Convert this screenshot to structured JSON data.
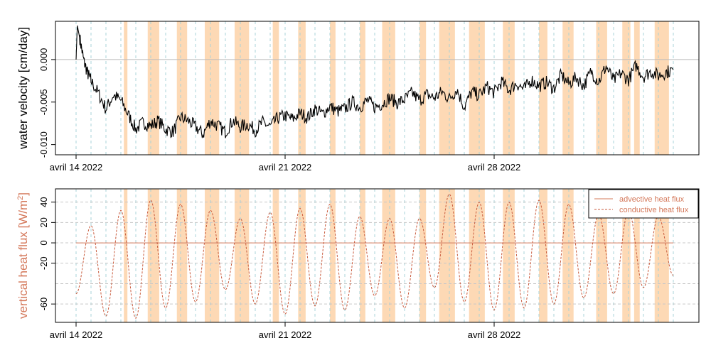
{
  "chart_data": [
    {
      "type": "line",
      "ylabel": "water velocity [cm/day]",
      "x_range": [
        "2022-04-14",
        "2022-05-04"
      ],
      "ylim": [
        -0.0112,
        0.0045
      ],
      "yticks": [
        {
          "value": 0.0,
          "label": "0.000"
        },
        {
          "value": -0.005,
          "label": "-0.005"
        },
        {
          "value": -0.01,
          "label": "-0.010"
        }
      ],
      "xticks": [
        {
          "date": "2022-04-14",
          "label": "avril 14 2022"
        },
        {
          "date": "2022-04-21",
          "label": "avril 21 2022"
        },
        {
          "date": "2022-04-28",
          "label": "avril 28 2022"
        }
      ],
      "reference_line": 0.0,
      "grid": "dashed vertical lines every 12 hours",
      "colors": {
        "line": "#000000",
        "shading": "#fdd9b5",
        "grid": "#a9d3d8"
      },
      "series": [
        {
          "x": [
            "2022-04-14 00:00",
            "2022-04-14 01:00",
            "2022-04-14 03:00",
            "2022-04-14 06:00",
            "2022-04-14 09:00",
            "2022-04-14 12:00",
            "2022-04-14 18:00",
            "2022-04-15 00:00",
            "2022-04-15 06:00",
            "2022-04-15 12:00",
            "2022-04-15 18:00",
            "2022-04-16 00:00",
            "2022-04-16 06:00",
            "2022-04-16 12:00",
            "2022-04-16 18:00",
            "2022-04-17 00:00",
            "2022-04-17 06:00",
            "2022-04-17 12:00",
            "2022-04-17 18:00",
            "2022-04-18 00:00",
            "2022-04-18 06:00",
            "2022-04-18 12:00",
            "2022-04-18 18:00",
            "2022-04-19 00:00",
            "2022-04-19 06:00",
            "2022-04-19 12:00",
            "2022-04-19 18:00",
            "2022-04-20 00:00",
            "2022-04-20 06:00",
            "2022-04-20 12:00",
            "2022-04-20 18:00",
            "2022-04-21 00:00",
            "2022-04-21 06:00",
            "2022-04-21 12:00",
            "2022-04-21 18:00",
            "2022-04-22 00:00",
            "2022-04-22 06:00",
            "2022-04-22 12:00",
            "2022-04-22 18:00",
            "2022-04-23 00:00",
            "2022-04-23 06:00",
            "2022-04-23 12:00",
            "2022-04-23 18:00",
            "2022-04-24 00:00",
            "2022-04-24 06:00",
            "2022-04-24 12:00",
            "2022-04-24 18:00",
            "2022-04-25 00:00",
            "2022-04-25 06:00",
            "2022-04-25 12:00",
            "2022-04-25 18:00",
            "2022-04-26 00:00",
            "2022-04-26 06:00",
            "2022-04-26 12:00",
            "2022-04-26 18:00",
            "2022-04-27 00:00",
            "2022-04-27 06:00",
            "2022-04-27 12:00",
            "2022-04-27 18:00",
            "2022-04-28 00:00",
            "2022-04-28 06:00",
            "2022-04-28 12:00",
            "2022-04-28 18:00",
            "2022-04-29 00:00",
            "2022-04-29 06:00",
            "2022-04-29 12:00",
            "2022-04-29 18:00",
            "2022-04-30 00:00",
            "2022-04-30 06:00",
            "2022-04-30 12:00",
            "2022-04-30 18:00",
            "2022-05-01 00:00",
            "2022-05-01 06:00",
            "2022-05-01 12:00",
            "2022-05-01 18:00",
            "2022-05-02 00:00",
            "2022-05-02 06:00",
            "2022-05-02 12:00",
            "2022-05-02 18:00",
            "2022-05-03 00:00",
            "2022-05-03 06:00",
            "2022-05-03 12:00",
            "2022-05-03 18:00",
            "2022-05-04 00:00"
          ],
          "y": [
            0.0,
            0.004,
            0.0025,
            0.0,
            -0.0015,
            -0.0025,
            -0.004,
            -0.0058,
            -0.0042,
            -0.0048,
            -0.0065,
            -0.0082,
            -0.0074,
            -0.0078,
            -0.0072,
            -0.0082,
            -0.0085,
            -0.0068,
            -0.0072,
            -0.0079,
            -0.0088,
            -0.0072,
            -0.0078,
            -0.0085,
            -0.0072,
            -0.0079,
            -0.0076,
            -0.0083,
            -0.0074,
            -0.0079,
            -0.0069,
            -0.0066,
            -0.007,
            -0.0063,
            -0.0068,
            -0.0058,
            -0.0064,
            -0.0055,
            -0.0061,
            -0.0058,
            -0.005,
            -0.0056,
            -0.0048,
            -0.0056,
            -0.0052,
            -0.0045,
            -0.0051,
            -0.0047,
            -0.0039,
            -0.0048,
            -0.0041,
            -0.0045,
            -0.0038,
            -0.0046,
            -0.0035,
            -0.0056,
            -0.0038,
            -0.0042,
            -0.0032,
            -0.0039,
            -0.0026,
            -0.0036,
            -0.0028,
            -0.0035,
            -0.0024,
            -0.0031,
            -0.0027,
            -0.0034,
            -0.0018,
            -0.0029,
            -0.0021,
            -0.0031,
            -0.0014,
            -0.0026,
            -0.0008,
            -0.0025,
            -0.0016,
            -0.0024,
            -0.0007,
            -0.002,
            -0.0014,
            -0.0019,
            -0.0015,
            -0.0012
          ]
        }
      ]
    },
    {
      "type": "line",
      "ylabel": "vertical heat flux [W/m²]",
      "x_range": [
        "2022-04-14",
        "2022-05-04"
      ],
      "ylim": [
        -78,
        53
      ],
      "yticks": [
        {
          "value": 40,
          "label": "40"
        },
        {
          "value": 20,
          "label": "20"
        },
        {
          "value": 0,
          "label": "0"
        },
        {
          "value": -20,
          "label": "-20"
        },
        {
          "value": -60,
          "label": "-60"
        }
      ],
      "xticks": [
        {
          "date": "2022-04-14",
          "label": "avril 14 2022"
        },
        {
          "date": "2022-04-21",
          "label": "avril 21 2022"
        },
        {
          "date": "2022-04-28",
          "label": "avril 28 2022"
        }
      ],
      "grid": "dashed horizontal lines at -60, -40, -20, 0, 20, 40 and dashed vertical lines every 12 hours",
      "legend_position": "top-right",
      "colors": {
        "advective": "#d4785a",
        "conductive": "#c85a3c",
        "ylabel": "#d4785a",
        "shading": "#fdd9b5"
      },
      "series": [
        {
          "name": "advective heat flux",
          "style": "solid",
          "x": [
            "2022-04-14 00:00",
            "2022-05-04 00:00"
          ],
          "y": [
            0,
            0
          ]
        },
        {
          "name": "conductive heat flux",
          "style": "dashed",
          "x": [
            "2022-04-14 00:00",
            "2022-04-14 12:00",
            "2022-04-15 00:00",
            "2022-04-15 12:00",
            "2022-04-16 00:00",
            "2022-04-16 12:00",
            "2022-04-17 00:00",
            "2022-04-17 12:00",
            "2022-04-18 00:00",
            "2022-04-18 12:00",
            "2022-04-19 00:00",
            "2022-04-19 12:00",
            "2022-04-20 00:00",
            "2022-04-20 12:00",
            "2022-04-21 00:00",
            "2022-04-21 12:00",
            "2022-04-22 00:00",
            "2022-04-22 12:00",
            "2022-04-23 00:00",
            "2022-04-23 12:00",
            "2022-04-24 00:00",
            "2022-04-24 12:00",
            "2022-04-25 00:00",
            "2022-04-25 12:00",
            "2022-04-26 00:00",
            "2022-04-26 12:00",
            "2022-04-27 00:00",
            "2022-04-27 12:00",
            "2022-04-28 00:00",
            "2022-04-28 12:00",
            "2022-04-29 00:00",
            "2022-04-29 12:00",
            "2022-04-30 00:00",
            "2022-04-30 12:00",
            "2022-05-01 00:00",
            "2022-05-01 12:00",
            "2022-05-02 00:00",
            "2022-05-02 12:00",
            "2022-05-03 00:00",
            "2022-05-03 12:00",
            "2022-05-04 00:00"
          ],
          "y": [
            -50,
            17,
            -72,
            32,
            -74,
            42,
            -64,
            38,
            -58,
            32,
            -46,
            24,
            -60,
            30,
            -70,
            34,
            -62,
            38,
            -66,
            26,
            -52,
            24,
            -64,
            24,
            -44,
            48,
            -58,
            40,
            -66,
            40,
            -64,
            42,
            -60,
            38,
            -54,
            28,
            -50,
            32,
            -44,
            26,
            -32
          ]
        }
      ]
    }
  ],
  "shaded_intervals": [
    [
      "2022-04-15 14:24",
      "2022-04-15 17:15"
    ],
    [
      "2022-04-16 09:35",
      "2022-04-16 18:49"
    ],
    [
      "2022-04-17 09:00",
      "2022-04-17 17:15"
    ],
    [
      "2022-04-18 07:25",
      "2022-04-18 19:00"
    ],
    [
      "2022-04-19 07:25",
      "2022-04-19 19:00"
    ],
    [
      "2022-04-20 14:04",
      "2022-04-20 19:00"
    ],
    [
      "2022-04-21 10:30",
      "2022-04-21 16:30"
    ],
    [
      "2022-04-22 12:00",
      "2022-04-22 16:30"
    ],
    [
      "2022-04-23 12:00",
      "2022-04-23 16:30"
    ],
    [
      "2022-04-24 06:00",
      "2022-04-24 16:30"
    ],
    [
      "2022-04-25 12:00",
      "2022-04-25 17:15"
    ],
    [
      "2022-04-26 03:50",
      "2022-04-26 16:30"
    ],
    [
      "2022-04-27 03:50",
      "2022-04-27 16:30"
    ],
    [
      "2022-04-28 07:00",
      "2022-04-28 16:30"
    ],
    [
      "2022-04-29 12:00",
      "2022-04-29 18:49"
    ],
    [
      "2022-04-30 07:00",
      "2022-04-30 15:50"
    ],
    [
      "2022-05-01 10:00",
      "2022-05-01 18:49"
    ],
    [
      "2022-05-02 07:00",
      "2022-05-02 13:30"
    ],
    [
      "2022-05-02 16:30",
      "2022-05-02 21:00"
    ],
    [
      "2022-05-03 09:00",
      "2022-05-03 20:30"
    ]
  ]
}
